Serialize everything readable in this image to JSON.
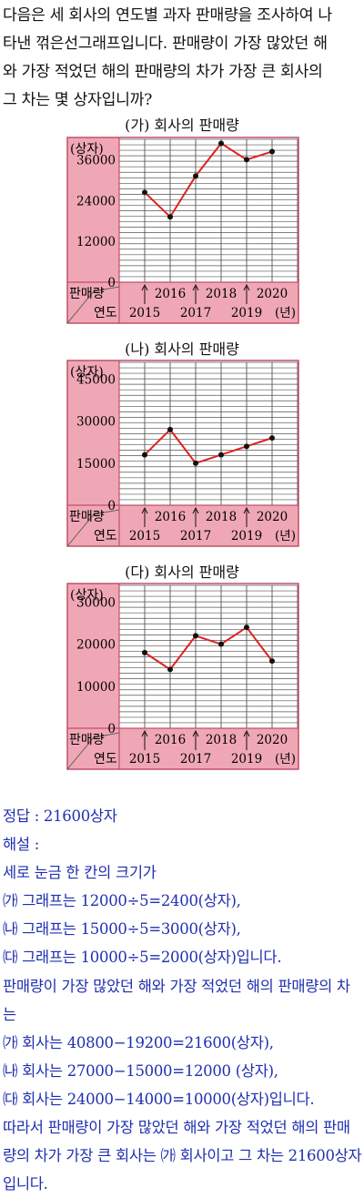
{
  "question": "다음은 세 회사의 연도별 과자 판매량을 조사하여 나\n타낸 꺾은선그래프입니다. 판매량이 가장 많았던 해\n와 가장 적었던 해의 판매량의 차가 가장 큰 회사의\n그 차는 몇 상자입니까?",
  "colors": {
    "panel": "#f0a7b5",
    "border": "#c0506a",
    "line": "#e02020",
    "grid": "#555555",
    "answer_text": "#1f2fb0"
  },
  "chart_data": [
    {
      "type": "line",
      "title": "(가) 회사의 판매량",
      "ylabel": "(상자)",
      "row_label": "판매량",
      "col_label": "연도",
      "unit_label": "(년)",
      "yticks": [
        "36000",
        "24000",
        "12000",
        "0"
      ],
      "ylim": [
        0,
        42000
      ],
      "x": [
        2015,
        2016,
        2017,
        2018,
        2019,
        2020
      ],
      "x_labels": [
        "2015",
        "2016",
        "2017",
        "2018",
        "2019",
        "2020"
      ],
      "values": [
        26400,
        19200,
        31200,
        40800,
        36000,
        38400
      ]
    },
    {
      "type": "line",
      "title": "(나) 회사의 판매량",
      "ylabel": "(상자)",
      "row_label": "판매량",
      "col_label": "연도",
      "unit_label": "(년)",
      "yticks": [
        "45000",
        "30000",
        "15000",
        "0"
      ],
      "ylim": [
        0,
        51000
      ],
      "x": [
        2015,
        2016,
        2017,
        2018,
        2019,
        2020
      ],
      "x_labels": [
        "2015",
        "2016",
        "2017",
        "2018",
        "2019",
        "2020"
      ],
      "values": [
        18000,
        27000,
        15000,
        18000,
        21000,
        24000
      ]
    },
    {
      "type": "line",
      "title": "(다) 회사의 판매량",
      "ylabel": "(상자)",
      "row_label": "판매량",
      "col_label": "연도",
      "unit_label": "(년)",
      "yticks": [
        "30000",
        "20000",
        "10000",
        "0"
      ],
      "ylim": [
        0,
        34000
      ],
      "x": [
        2015,
        2016,
        2017,
        2018,
        2019,
        2020
      ],
      "x_labels": [
        "2015",
        "2016",
        "2017",
        "2018",
        "2019",
        "2020"
      ],
      "values": [
        18000,
        14000,
        22000,
        20000,
        24000,
        16000
      ]
    }
  ],
  "answer": {
    "line1": "정답 : 21600상자",
    "line2": "해설 :",
    "line3": "세로 눈금 한 칸의 크기가",
    "line4": "㈎ 그래프는 12000÷5=2400(상자),",
    "line5": "㈏ 그래프는 15000÷5=3000(상자),",
    "line6": "㈐ 그래프는 10000÷5=2000(상자)입니다.",
    "line7": "판매량이 가장 많았던 해와 가장 적었던 해의 판매량의 차는",
    "line8": "㈎ 회사는 40800−19200=21600(상자),",
    "line9": "㈏ 회사는 27000−15000=12000 (상자),",
    "line10": "㈐ 회사는 24000−14000=10000(상자)입니다.",
    "line11": "따라서 판매량이 가장 많았던 해와 가장 적었던 해의 판매량의 차가 가장 큰 회사는 ㈎ 회사이고 그 차는 21600상자입니다."
  }
}
